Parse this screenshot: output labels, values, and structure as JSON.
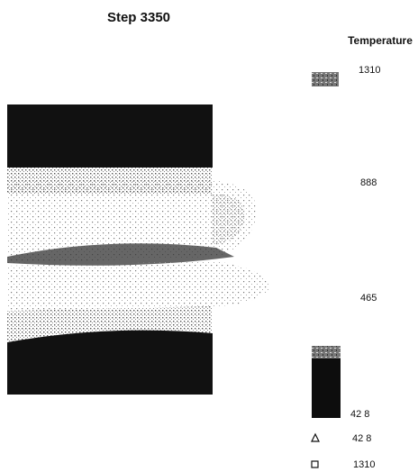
{
  "title": "Step 3350",
  "legend": {
    "title": "Temperature",
    "scale_labels": [
      "1310",
      "888",
      "465",
      "42 8"
    ],
    "min_marker": {
      "label": "42 8"
    },
    "max_marker": {
      "label": "1310"
    }
  }
}
